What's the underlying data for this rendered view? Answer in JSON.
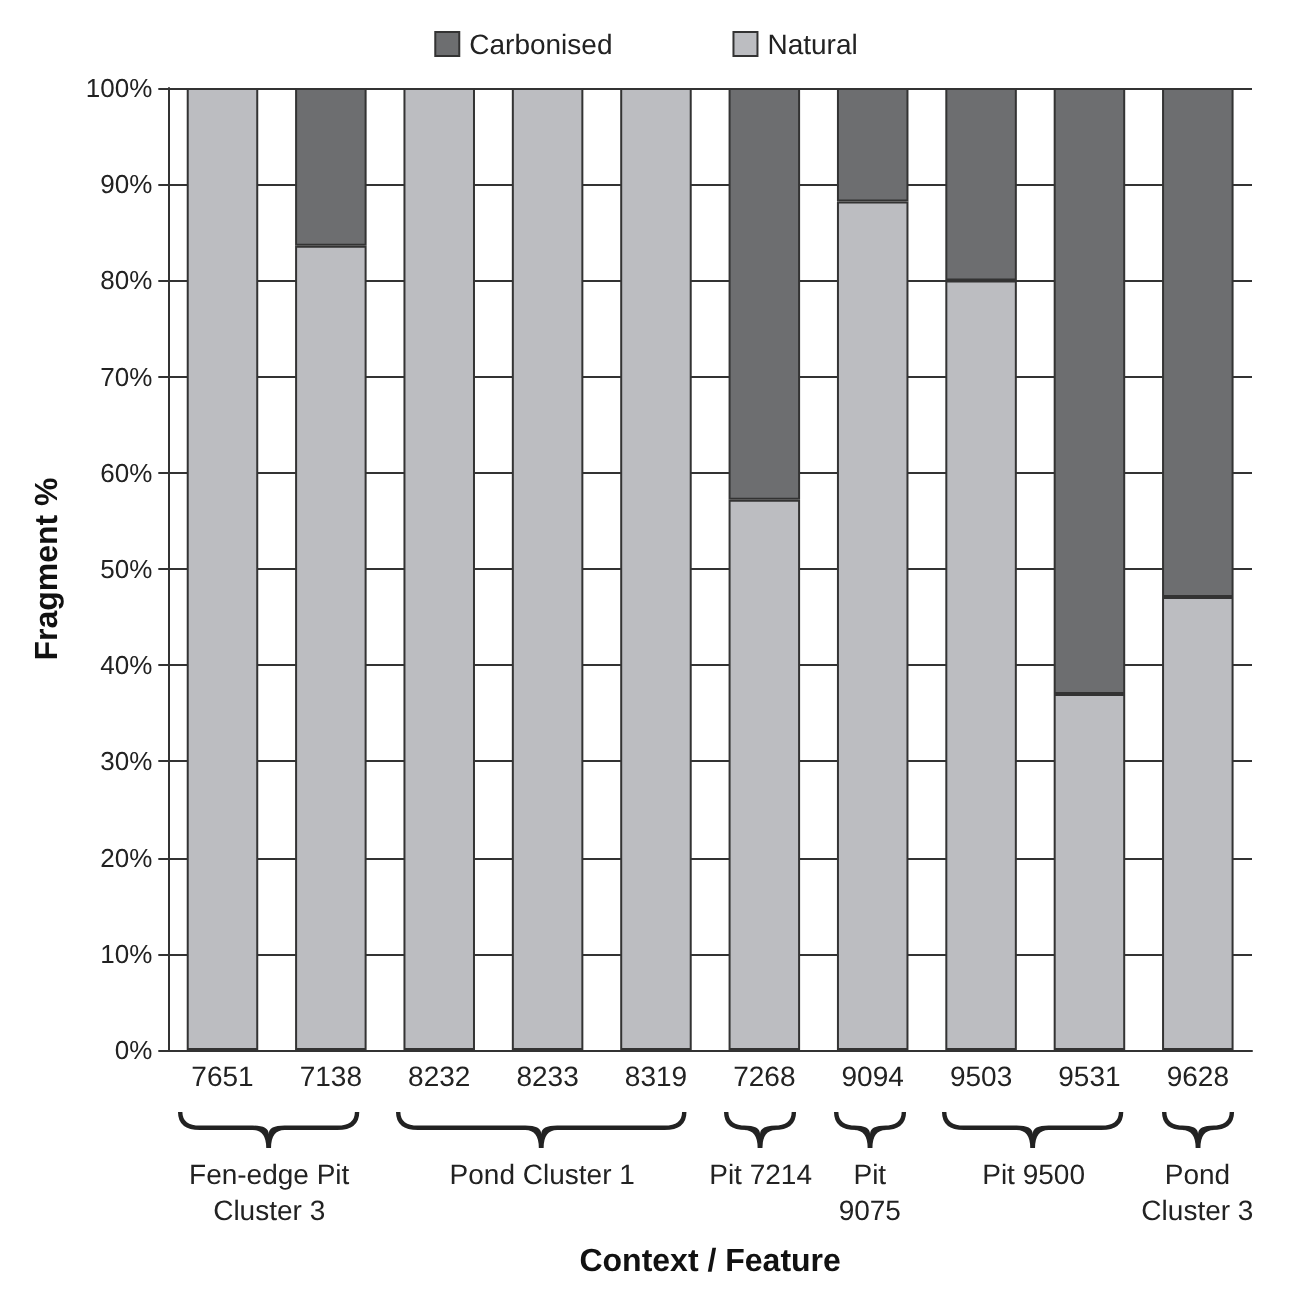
{
  "chart_data": {
    "type": "bar",
    "stacked": true,
    "xlabel": "Context / Feature",
    "ylabel": "Fragment %",
    "categories": [
      "7651",
      "7138",
      "8232",
      "8233",
      "8319",
      "7268",
      "9094",
      "9503",
      "9531",
      "9628"
    ],
    "series": [
      {
        "name": "Natural",
        "color": "#bcbdc1",
        "values": [
          100,
          83.6,
          100,
          100,
          100,
          57.2,
          88.2,
          80,
          37,
          47.1
        ]
      },
      {
        "name": "Carbonised",
        "color": "#6d6e70",
        "values": [
          0,
          16.4,
          0,
          0,
          0,
          42.8,
          11.8,
          20,
          63,
          52.9
        ]
      }
    ],
    "ylim": [
      0,
      100
    ],
    "yticks": [
      {
        "value": 0,
        "label": "0%"
      },
      {
        "value": 10,
        "label": "10%"
      },
      {
        "value": 20,
        "label": "20%"
      },
      {
        "value": 30,
        "label": "30%"
      },
      {
        "value": 40,
        "label": "40%"
      },
      {
        "value": 50,
        "label": "50%"
      },
      {
        "value": 60,
        "label": "60%"
      },
      {
        "value": 70,
        "label": "70%"
      },
      {
        "value": 80,
        "label": "80%"
      },
      {
        "value": 90,
        "label": "90%"
      },
      {
        "value": 100,
        "label": "100%"
      }
    ],
    "grid": "y",
    "legend": "top",
    "annotations": [
      "Fen-edge Pit\nCluster 3",
      "Pond Cluster 1",
      "Pit 7214",
      "Pit\n9075",
      "Pit 9500",
      "Pond\nCluster 3"
    ]
  }
}
